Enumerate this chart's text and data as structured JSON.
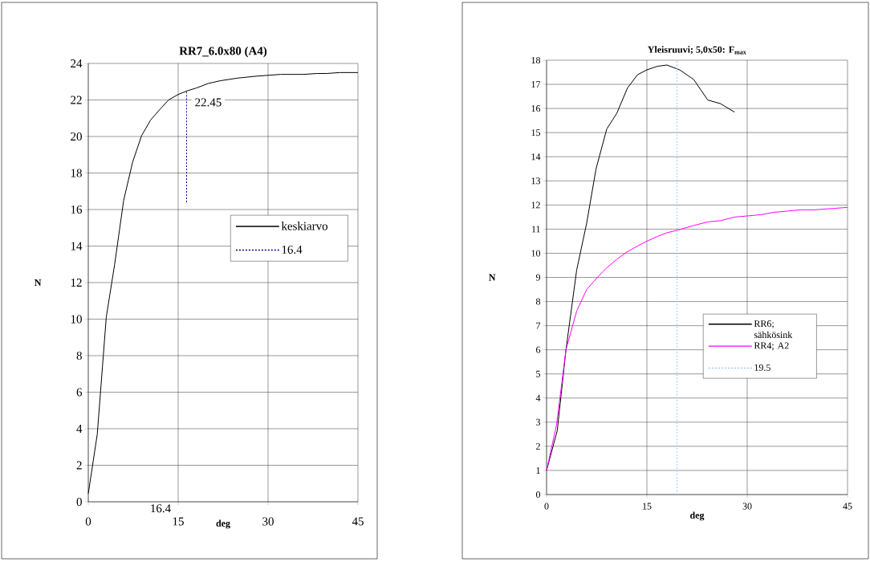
{
  "chart_data": [
    {
      "type": "line",
      "title": "RR7_6.0x80 (A4)",
      "xlabel": "deg",
      "ylabel": "N",
      "xlim": [
        0,
        45
      ],
      "xticks": [
        0,
        15,
        30,
        45
      ],
      "ylim": [
        0,
        24
      ],
      "yticks": [
        0,
        2,
        4,
        6,
        8,
        10,
        12,
        14,
        16,
        18,
        20,
        22,
        24
      ],
      "grid": true,
      "legend": "right",
      "marker": "none",
      "series": [
        {
          "name": "keskiarvo",
          "color": "#000000",
          "line_style": "solid",
          "x": [
            0,
            1.5,
            3.0,
            4.4,
            5.9,
            7.4,
            8.9,
            10.4,
            12,
            13.4,
            15,
            16.5,
            18,
            20,
            22,
            25,
            28,
            32.1,
            35.9,
            38.2,
            39.8,
            42,
            45
          ],
          "values": [
            0.45,
            3.7,
            10.1,
            13.0,
            16.5,
            18.6,
            20.05,
            20.9,
            21.5,
            22.0,
            22.3,
            22.5,
            22.65,
            22.9,
            23.05,
            23.2,
            23.3,
            23.4,
            23.4,
            23.45,
            23.45,
            23.5,
            23.5
          ]
        },
        {
          "name": "16.4",
          "color": "#000080",
          "line_style": "dotted",
          "x": [
            16.4,
            16.4
          ],
          "values": [
            16.4,
            22.45
          ]
        }
      ],
      "annotations": [
        {
          "text": "22.45",
          "x": 16.4,
          "y": 22.45
        },
        "16.4"
      ]
    },
    {
      "type": "line",
      "title": "Yleisruuvi; 5,0x50: F$_{max}$",
      "xlabel": "deg",
      "ylabel": "N",
      "xlim": [
        0,
        45
      ],
      "xticks": [
        0,
        15,
        30,
        45
      ],
      "ylim": [
        0,
        18
      ],
      "yticks": [
        0,
        1,
        2,
        3,
        4,
        5,
        6,
        7,
        8,
        9,
        10,
        11,
        12,
        13,
        14,
        15,
        16,
        17,
        18
      ],
      "grid": true,
      "legend": "bottom right",
      "marker": "none",
      "series": [
        {
          "name": "RR6; sähkösink",
          "color": "#000000",
          "line_style": "solid",
          "x": [
            0,
            1.6,
            2.9,
            4.5,
            6.0,
            7.4,
            9.0,
            10.5,
            12.1,
            13.6,
            15,
            16.6,
            18,
            19.9,
            22,
            24.1,
            26,
            28.1
          ],
          "values": [
            1.0,
            2.65,
            6.0,
            9.3,
            11.25,
            13.5,
            15.15,
            15.8,
            16.85,
            17.4,
            17.6,
            17.75,
            17.8,
            17.6,
            17.2,
            16.35,
            16.2,
            15.85
          ]
        },
        {
          "name": "RR4; A2",
          "color": "#ff00ff",
          "line_style": "solid",
          "x": [
            0,
            1.5,
            2.9,
            4.5,
            6,
            7.6,
            9,
            10.5,
            12,
            13.6,
            15,
            16.6,
            18,
            19.5,
            22,
            24.1,
            26,
            28.1,
            30.2,
            32.1,
            34.1,
            36.1,
            38,
            40.1,
            45
          ],
          "values": [
            1.0,
            2.9,
            6.0,
            7.6,
            8.5,
            9.0,
            9.4,
            9.75,
            10.05,
            10.3,
            10.5,
            10.7,
            10.85,
            10.95,
            11.15,
            11.3,
            11.35,
            11.5,
            11.55,
            11.6,
            11.7,
            11.75,
            11.8,
            11.8,
            11.9
          ]
        },
        {
          "name": "19.5",
          "color": "#99ccff",
          "line_style": "dotted",
          "x": [
            19.5,
            19.5
          ],
          "values": [
            0,
            18
          ]
        }
      ]
    }
  ]
}
